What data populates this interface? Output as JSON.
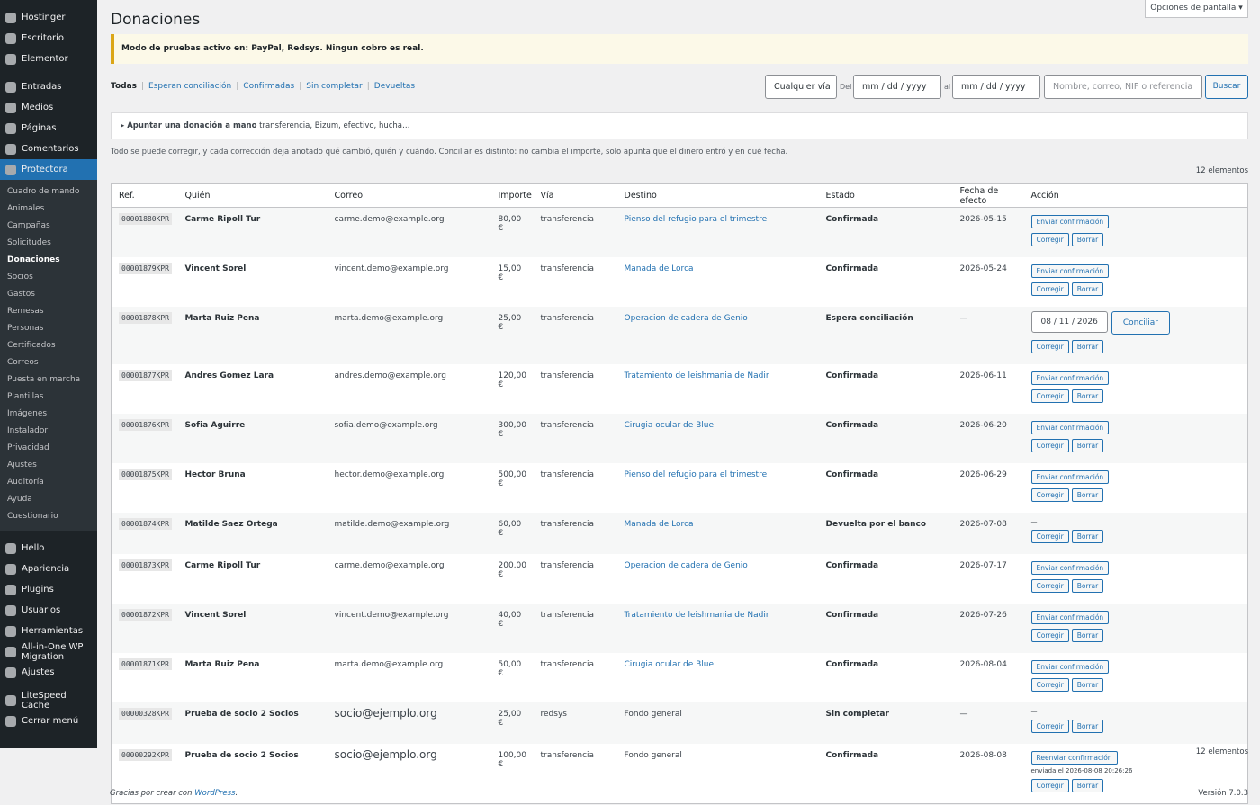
{
  "sidebar": {
    "top": [
      "Hostinger",
      "Escritorio",
      "Elementor"
    ],
    "main": [
      "Entradas",
      "Medios",
      "Páginas",
      "Comentarios"
    ],
    "active": "Protectora",
    "submenu": [
      "Cuadro de mando",
      "Animales",
      "Campañas",
      "Solicitudes",
      "Donaciones",
      "Socios",
      "Gastos",
      "Remesas",
      "Personas",
      "Certificados",
      "Correos",
      "Puesta en marcha",
      "Plantillas",
      "Imágenes",
      "Instalador",
      "Privacidad",
      "Ajustes",
      "Auditoría",
      "Ayuda",
      "Cuestionario"
    ],
    "bottom": [
      "Hello",
      "Apariencia",
      "Plugins",
      "Usuarios",
      "Herramientas",
      "All-in-One WP Migration",
      "Ajustes"
    ],
    "extra": [
      "LiteSpeed Cache",
      "Cerrar menú"
    ]
  },
  "header": {
    "title": "Donaciones",
    "screen_options": "Opciones de pantalla ▾"
  },
  "notice": "Modo de pruebas activo en: PayPal, Redsys. Ningun cobro es real.",
  "filters": {
    "current": "Todas",
    "links": [
      "Esperan conciliación",
      "Confirmadas",
      "Sin completar",
      "Devueltas"
    ],
    "separator": "|",
    "via": "Cualquier vía",
    "from_label": "Del",
    "to_label": "al",
    "date_placeholder": "mm / dd / yyyy",
    "search_placeholder": "Nombre, correo, NIF o referencia",
    "search_button": "Buscar"
  },
  "manual": {
    "summary": "▸ Apuntar una donación a mano",
    "hint": "transferencia, Bizum, efectivo, hucha…"
  },
  "note": "Todo se puede corregir, y cada corrección deja anotado qué cambió, quién y cuándo. Conciliar es distinto: no cambia el importe, solo apunta que el dinero entró y en qué fecha.",
  "count_top": "12 elementos",
  "count_bottom": "12 elementos",
  "table": {
    "headers": [
      "Ref.",
      "Quién",
      "Correo",
      "Importe",
      "Vía",
      "Destino",
      "Estado",
      "Fecha de efecto",
      "Acción"
    ],
    "rows": [
      {
        "ref": "00001880KPR",
        "who": "Carme Ripoll Tur",
        "email": "carme.demo@example.org",
        "amount": "80,00 €",
        "via": "transferencia",
        "dest": "Pienso del refugio para el trimestre",
        "status": "Confirmada",
        "date": "2026-05-15",
        "send": "Enviar confirmación",
        "buttons": [
          "Corregir",
          "Borrar"
        ]
      },
      {
        "ref": "00001879KPR",
        "who": "Vincent Sorel",
        "email": "vincent.demo@example.org",
        "amount": "15,00 €",
        "via": "transferencia",
        "dest": "Manada de Lorca",
        "status": "Confirmada",
        "date": "2026-05-24",
        "send": "Enviar confirmación",
        "buttons": [
          "Corregir",
          "Borrar"
        ]
      },
      {
        "ref": "00001878KPR",
        "who": "Marta Ruiz Pena",
        "email": "marta.demo@example.org",
        "amount": "25,00 €",
        "via": "transferencia",
        "dest": "Operacion de cadera de Genio",
        "status": "Espera conciliación",
        "date": "—",
        "reconcile_date": "08 / 11 / 2026",
        "reconcile": "Conciliar",
        "buttons": [
          "Corregir",
          "Borrar"
        ]
      },
      {
        "ref": "00001877KPR",
        "who": "Andres Gomez Lara",
        "email": "andres.demo@example.org",
        "amount": "120,00 €",
        "via": "transferencia",
        "dest": "Tratamiento de leishmania de Nadir",
        "status": "Confirmada",
        "date": "2026-06-11",
        "send": "Enviar confirmación",
        "buttons": [
          "Corregir",
          "Borrar"
        ]
      },
      {
        "ref": "00001876KPR",
        "who": "Sofia Aguirre",
        "email": "sofia.demo@example.org",
        "amount": "300,00 €",
        "via": "transferencia",
        "dest": "Cirugia ocular de Blue",
        "status": "Confirmada",
        "date": "2026-06-20",
        "send": "Enviar confirmación",
        "buttons": [
          "Corregir",
          "Borrar"
        ]
      },
      {
        "ref": "00001875KPR",
        "who": "Hector Bruna",
        "email": "hector.demo@example.org",
        "amount": "500,00 €",
        "via": "transferencia",
        "dest": "Pienso del refugio para el trimestre",
        "status": "Confirmada",
        "date": "2026-06-29",
        "send": "Enviar confirmación",
        "buttons": [
          "Corregir",
          "Borrar"
        ]
      },
      {
        "ref": "00001874KPR",
        "who": "Matilde Saez Ortega",
        "email": "matilde.demo@example.org",
        "amount": "60,00 €",
        "via": "transferencia",
        "dest": "Manada de Lorca",
        "status": "Devuelta por el banco",
        "date": "2026-07-08",
        "dash": "—",
        "buttons": [
          "Corregir",
          "Borrar"
        ]
      },
      {
        "ref": "00001873KPR",
        "who": "Carme Ripoll Tur",
        "email": "carme.demo@example.org",
        "amount": "200,00 €",
        "via": "transferencia",
        "dest": "Operacion de cadera de Genio",
        "status": "Confirmada",
        "date": "2026-07-17",
        "send": "Enviar confirmación",
        "buttons": [
          "Corregir",
          "Borrar"
        ]
      },
      {
        "ref": "00001872KPR",
        "who": "Vincent Sorel",
        "email": "vincent.demo@example.org",
        "amount": "40,00 €",
        "via": "transferencia",
        "dest": "Tratamiento de leishmania de Nadir",
        "status": "Confirmada",
        "date": "2026-07-26",
        "send": "Enviar confirmación",
        "buttons": [
          "Corregir",
          "Borrar"
        ]
      },
      {
        "ref": "00001871KPR",
        "who": "Marta Ruiz Pena",
        "email": "marta.demo@example.org",
        "amount": "50,00 €",
        "via": "transferencia",
        "dest": "Cirugia ocular de Blue",
        "status": "Confirmada",
        "date": "2026-08-04",
        "send": "Enviar confirmación",
        "buttons": [
          "Corregir",
          "Borrar"
        ]
      },
      {
        "ref": "00000328KPR",
        "who": "Prueba de socio 2 Socios",
        "email": "socio@ejemplo.org",
        "amount": "25,00 €",
        "via": "redsys",
        "dest": "Fondo general",
        "status": "Sin completar",
        "date": "—",
        "dash": "—",
        "buttons": [
          "Corregir",
          "Borrar"
        ]
      },
      {
        "ref": "00000292KPR",
        "who": "Prueba de socio 2 Socios",
        "email": "socio@ejemplo.org",
        "amount": "100,00 €",
        "via": "transferencia",
        "dest": "Fondo general",
        "status": "Confirmada",
        "date": "2026-08-08",
        "send": "Reenviar confirmación",
        "sent_note": "enviada el 2026-08-08 20:26:26",
        "buttons": [
          "Corregir",
          "Borrar"
        ]
      }
    ]
  },
  "footer": {
    "thanks": "Gracias por crear con",
    "link": "WordPress",
    "end": ".",
    "version": "Versión 7.0.3"
  }
}
